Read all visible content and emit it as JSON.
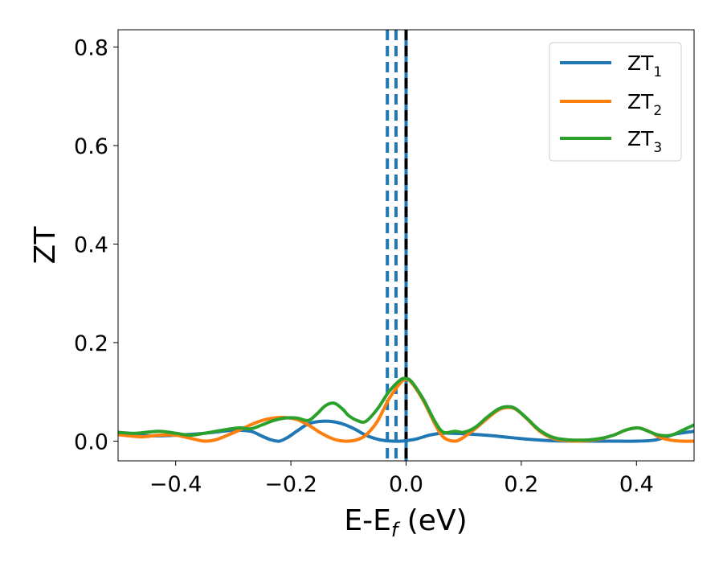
{
  "chart_data": {
    "type": "line",
    "xlabel": {
      "main": "E-E",
      "sub": "f",
      "unit": " (eV)"
    },
    "ylabel": "ZT",
    "xlim": [
      -0.5,
      0.5
    ],
    "ylim": [
      -0.04,
      0.835
    ],
    "x_ticks": [
      -0.4,
      -0.2,
      0.0,
      0.2,
      0.4
    ],
    "x_tick_labels": [
      "−0.4",
      "−0.2",
      "0.0",
      "0.2",
      "0.4"
    ],
    "y_ticks": [
      0.0,
      0.2,
      0.4,
      0.6,
      0.8
    ],
    "y_tick_labels": [
      "0.0",
      "0.2",
      "0.4",
      "0.6",
      "0.8"
    ],
    "grid": false,
    "legend_position": "top-right",
    "series": [
      {
        "name": "ZT",
        "name_sub": "1",
        "color": "#1f77b4",
        "x": [
          -0.5,
          -0.45,
          -0.4,
          -0.35,
          -0.3,
          -0.27,
          -0.25,
          -0.235,
          -0.22,
          -0.205,
          -0.19,
          -0.17,
          -0.15,
          -0.13,
          -0.11,
          -0.09,
          -0.07,
          -0.05,
          -0.035,
          -0.02,
          -0.01,
          0.0,
          0.02,
          0.04,
          0.06,
          0.08,
          0.1,
          0.15,
          0.2,
          0.25,
          0.3,
          0.35,
          0.4,
          0.43,
          0.45,
          0.47,
          0.5
        ],
        "y": [
          0.015,
          0.011,
          0.012,
          0.016,
          0.022,
          0.02,
          0.01,
          0.003,
          0.0,
          0.008,
          0.02,
          0.035,
          0.04,
          0.04,
          0.035,
          0.025,
          0.012,
          0.004,
          0.001,
          0.0,
          0.0,
          0.001,
          0.005,
          0.012,
          0.016,
          0.016,
          0.015,
          0.011,
          0.005,
          0.001,
          0.0,
          0.0,
          0.0,
          0.002,
          0.008,
          0.015,
          0.02
        ]
      },
      {
        "name": "ZT",
        "name_sub": "2",
        "color": "#ff7f0e",
        "x": [
          -0.5,
          -0.46,
          -0.43,
          -0.4,
          -0.375,
          -0.35,
          -0.33,
          -0.31,
          -0.29,
          -0.27,
          -0.25,
          -0.23,
          -0.21,
          -0.19,
          -0.17,
          -0.15,
          -0.13,
          -0.115,
          -0.1,
          -0.085,
          -0.07,
          -0.05,
          -0.03,
          -0.01,
          0.0,
          0.01,
          0.03,
          0.05,
          0.065,
          0.085,
          0.1,
          0.12,
          0.14,
          0.16,
          0.175,
          0.19,
          0.21,
          0.23,
          0.25,
          0.27,
          0.3,
          0.33,
          0.36,
          0.38,
          0.4,
          0.41,
          0.425,
          0.44,
          0.46,
          0.48,
          0.5
        ],
        "y": [
          0.013,
          0.009,
          0.012,
          0.012,
          0.006,
          0.0,
          0.003,
          0.012,
          0.022,
          0.033,
          0.042,
          0.047,
          0.048,
          0.044,
          0.033,
          0.018,
          0.006,
          0.001,
          0.0,
          0.003,
          0.012,
          0.04,
          0.085,
          0.118,
          0.125,
          0.118,
          0.082,
          0.035,
          0.008,
          0.0,
          0.008,
          0.025,
          0.045,
          0.063,
          0.068,
          0.065,
          0.045,
          0.022,
          0.008,
          0.002,
          0.0,
          0.003,
          0.012,
          0.022,
          0.027,
          0.025,
          0.018,
          0.008,
          0.002,
          0.0,
          0.0
        ]
      },
      {
        "name": "ZT",
        "name_sub": "3",
        "color": "#2ca02c",
        "x": [
          -0.5,
          -0.47,
          -0.43,
          -0.4,
          -0.375,
          -0.35,
          -0.32,
          -0.29,
          -0.27,
          -0.25,
          -0.23,
          -0.21,
          -0.19,
          -0.17,
          -0.155,
          -0.14,
          -0.125,
          -0.11,
          -0.1,
          -0.085,
          -0.07,
          -0.05,
          -0.03,
          -0.01,
          0.0,
          0.01,
          0.03,
          0.05,
          0.065,
          0.085,
          0.1,
          0.12,
          0.14,
          0.16,
          0.175,
          0.19,
          0.21,
          0.23,
          0.25,
          0.27,
          0.3,
          0.33,
          0.36,
          0.38,
          0.4,
          0.41,
          0.425,
          0.44,
          0.46,
          0.48,
          0.5
        ],
        "y": [
          0.018,
          0.016,
          0.02,
          0.016,
          0.012,
          0.016,
          0.022,
          0.027,
          0.025,
          0.033,
          0.042,
          0.047,
          0.047,
          0.042,
          0.055,
          0.072,
          0.077,
          0.065,
          0.052,
          0.042,
          0.04,
          0.065,
          0.1,
          0.124,
          0.127,
          0.12,
          0.085,
          0.04,
          0.018,
          0.02,
          0.018,
          0.028,
          0.048,
          0.065,
          0.07,
          0.066,
          0.046,
          0.024,
          0.01,
          0.004,
          0.002,
          0.004,
          0.012,
          0.022,
          0.027,
          0.025,
          0.018,
          0.012,
          0.012,
          0.022,
          0.033
        ]
      }
    ],
    "vertical_lines": [
      {
        "x": -0.0325,
        "color": "#1f77b4",
        "style": "dashed"
      },
      {
        "x": -0.0175,
        "color": "#1f77b4",
        "style": "dashed"
      },
      {
        "x": 0.0,
        "color": "#1f77b4",
        "style": "solid"
      },
      {
        "x": 0.0,
        "color": "#000000",
        "style": "dashed"
      }
    ]
  }
}
